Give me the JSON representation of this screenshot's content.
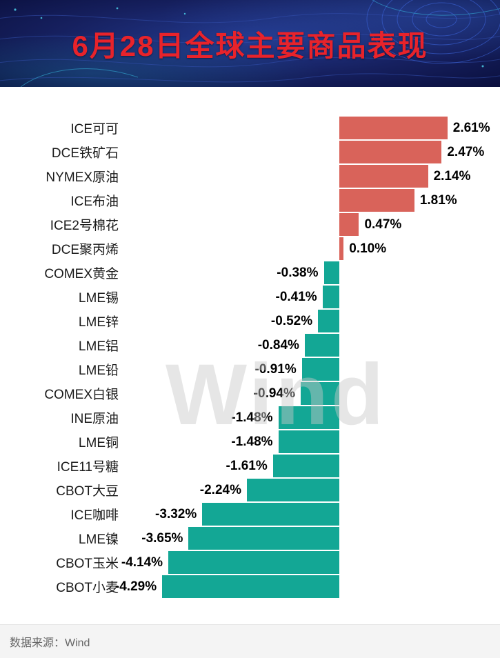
{
  "header": {
    "title": "6月28日全球主要商品表现"
  },
  "watermark": "Wind",
  "footer": {
    "source": "数据来源：Wind"
  },
  "chart_data": {
    "type": "bar",
    "orientation": "horizontal",
    "title": "6月28日全球主要商品表现",
    "categories": [
      "ICE可可",
      "DCE铁矿石",
      "NYMEX原油",
      "ICE布油",
      "ICE2号棉花",
      "DCE聚丙烯",
      "COMEX黄金",
      "LME锡",
      "LME锌",
      "LME铝",
      "LME铅",
      "COMEX白银",
      "INE原油",
      "LME铜",
      "ICE11号糖",
      "CBOT大豆",
      "ICE咖啡",
      "LME镍",
      "CBOT玉米",
      "CBOT小麦"
    ],
    "values": [
      2.61,
      2.47,
      2.14,
      1.81,
      0.47,
      0.1,
      -0.38,
      -0.41,
      -0.52,
      -0.84,
      -0.91,
      -0.94,
      -1.48,
      -1.48,
      -1.61,
      -2.24,
      -3.32,
      -3.65,
      -4.14,
      -4.29
    ],
    "value_labels": [
      "2.61%",
      "2.47%",
      "2.14%",
      "1.81%",
      "0.47%",
      "0.10%",
      "-0.38%",
      "-0.41%",
      "-0.52%",
      "-0.84%",
      "-0.91%",
      "-0.94%",
      "-1.48%",
      "-1.48%",
      "-1.61%",
      "-2.24%",
      "-3.32%",
      "-3.65%",
      "-4.14%",
      "-4.29%"
    ],
    "colors": {
      "positive": "#d9635a",
      "negative": "#13a795"
    },
    "xlim": [
      -4.8,
      3.1
    ],
    "zero_percent": 57.3,
    "scale_percent_per_unit": 11.0,
    "grid": false,
    "legend": "none",
    "source": "Wind"
  }
}
